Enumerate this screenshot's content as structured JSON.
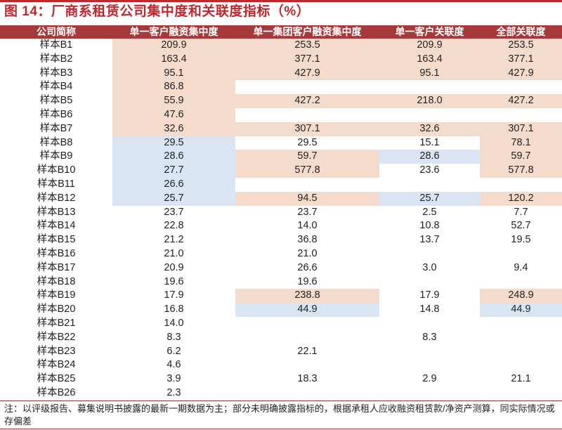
{
  "title": "图 14：厂商系租赁公司集中度和关联度指标（%）",
  "colors": {
    "title_red": "#C0272D",
    "header_bg": "#A5393B",
    "highlight_high": "#F5DBCC",
    "highlight_low": "#D9E5F2"
  },
  "table": {
    "headers": [
      "公司简称",
      "单一客户融资集中度",
      "单一集团客户融资集中度",
      "单一客户关联度",
      "全部关联度"
    ],
    "rows": [
      {
        "name": "样本B1",
        "c1": "209.9",
        "c2": "253.5",
        "c3": "209.9",
        "c4": "253.5",
        "hl": [
          "p",
          "p",
          "p",
          "p"
        ]
      },
      {
        "name": "样本B2",
        "c1": "163.4",
        "c2": "377.1",
        "c3": "163.4",
        "c4": "377.1",
        "hl": [
          "p",
          "p",
          "p",
          "p"
        ]
      },
      {
        "name": "样本B3",
        "c1": "95.1",
        "c2": "427.9",
        "c3": "95.1",
        "c4": "427.9",
        "hl": [
          "p",
          "p",
          "p",
          "p"
        ]
      },
      {
        "name": "样本B4",
        "c1": "86.8",
        "c2": "",
        "c3": "",
        "c4": "",
        "hl": [
          "p",
          "w",
          "w",
          "w"
        ]
      },
      {
        "name": "样本B5",
        "c1": "55.9",
        "c2": "427.2",
        "c3": "218.0",
        "c4": "427.2",
        "hl": [
          "p",
          "p",
          "p",
          "p"
        ]
      },
      {
        "name": "样本B6",
        "c1": "47.6",
        "c2": "",
        "c3": "",
        "c4": "",
        "hl": [
          "p",
          "w",
          "w",
          "w"
        ]
      },
      {
        "name": "样本B7",
        "c1": "32.6",
        "c2": "307.1",
        "c3": "32.6",
        "c4": "307.1",
        "hl": [
          "p",
          "p",
          "p",
          "p"
        ]
      },
      {
        "name": "样本B8",
        "c1": "29.5",
        "c2": "29.5",
        "c3": "15.1",
        "c4": "78.1",
        "hl": [
          "b",
          "w",
          "w",
          "p"
        ]
      },
      {
        "name": "样本B9",
        "c1": "28.6",
        "c2": "59.7",
        "c3": "28.6",
        "c4": "59.7",
        "hl": [
          "b",
          "p",
          "b",
          "p"
        ]
      },
      {
        "name": "样本B10",
        "c1": "27.7",
        "c2": "577.8",
        "c3": "23.6",
        "c4": "577.8",
        "hl": [
          "b",
          "p",
          "w",
          "p"
        ]
      },
      {
        "name": "样本B11",
        "c1": "26.6",
        "c2": "",
        "c3": "",
        "c4": "",
        "hl": [
          "b",
          "w",
          "w",
          "w"
        ]
      },
      {
        "name": "样本B12",
        "c1": "25.7",
        "c2": "94.5",
        "c3": "25.7",
        "c4": "120.2",
        "hl": [
          "b",
          "p",
          "b",
          "p"
        ]
      },
      {
        "name": "样本B13",
        "c1": "23.7",
        "c2": "23.7",
        "c3": "2.5",
        "c4": "7.7",
        "hl": [
          "w",
          "w",
          "w",
          "w"
        ]
      },
      {
        "name": "样本B14",
        "c1": "22.8",
        "c2": "14.0",
        "c3": "10.8",
        "c4": "52.7",
        "hl": [
          "w",
          "w",
          "w",
          "w"
        ]
      },
      {
        "name": "样本B15",
        "c1": "21.2",
        "c2": "36.8",
        "c3": "13.7",
        "c4": "19.5",
        "hl": [
          "w",
          "w",
          "w",
          "w"
        ]
      },
      {
        "name": "样本B16",
        "c1": "21.0",
        "c2": "21.0",
        "c3": "",
        "c4": "",
        "hl": [
          "w",
          "w",
          "w",
          "w"
        ]
      },
      {
        "name": "样本B17",
        "c1": "20.9",
        "c2": "26.6",
        "c3": "3.0",
        "c4": "9.4",
        "hl": [
          "w",
          "w",
          "w",
          "w"
        ]
      },
      {
        "name": "样本B18",
        "c1": "19.6",
        "c2": "19.6",
        "c3": "",
        "c4": "",
        "hl": [
          "w",
          "w",
          "w",
          "w"
        ]
      },
      {
        "name": "样本B19",
        "c1": "17.9",
        "c2": "238.8",
        "c3": "17.9",
        "c4": "248.9",
        "hl": [
          "w",
          "p",
          "w",
          "p"
        ]
      },
      {
        "name": "样本B20",
        "c1": "16.8",
        "c2": "44.9",
        "c3": "14.8",
        "c4": "44.9",
        "hl": [
          "w",
          "b",
          "w",
          "b"
        ]
      },
      {
        "name": "样本B21",
        "c1": "14.0",
        "c2": "",
        "c3": "",
        "c4": "",
        "hl": [
          "w",
          "w",
          "w",
          "w"
        ]
      },
      {
        "name": "样本B22",
        "c1": "8.3",
        "c2": "",
        "c3": "8.3",
        "c4": "",
        "hl": [
          "w",
          "w",
          "w",
          "w"
        ]
      },
      {
        "name": "样本B23",
        "c1": "6.2",
        "c2": "22.1",
        "c3": "",
        "c4": "",
        "hl": [
          "w",
          "w",
          "w",
          "w"
        ]
      },
      {
        "name": "样本B24",
        "c1": "4.6",
        "c2": "",
        "c3": "",
        "c4": "",
        "hl": [
          "w",
          "w",
          "w",
          "w"
        ]
      },
      {
        "name": "样本B25",
        "c1": "3.9",
        "c2": "18.3",
        "c3": "2.9",
        "c4": "21.1",
        "hl": [
          "w",
          "w",
          "w",
          "w"
        ]
      },
      {
        "name": "样本B26",
        "c1": "2.3",
        "c2": "",
        "c3": "",
        "c4": "",
        "hl": [
          "w",
          "w",
          "w",
          "w"
        ]
      }
    ]
  },
  "footnote": "注：以评级报告、募集说明书披露的最新一期数据为主；部分未明确披露指标的，根据承租人应收融资租赁款/净资产测算，同实际情况或存偏差"
}
